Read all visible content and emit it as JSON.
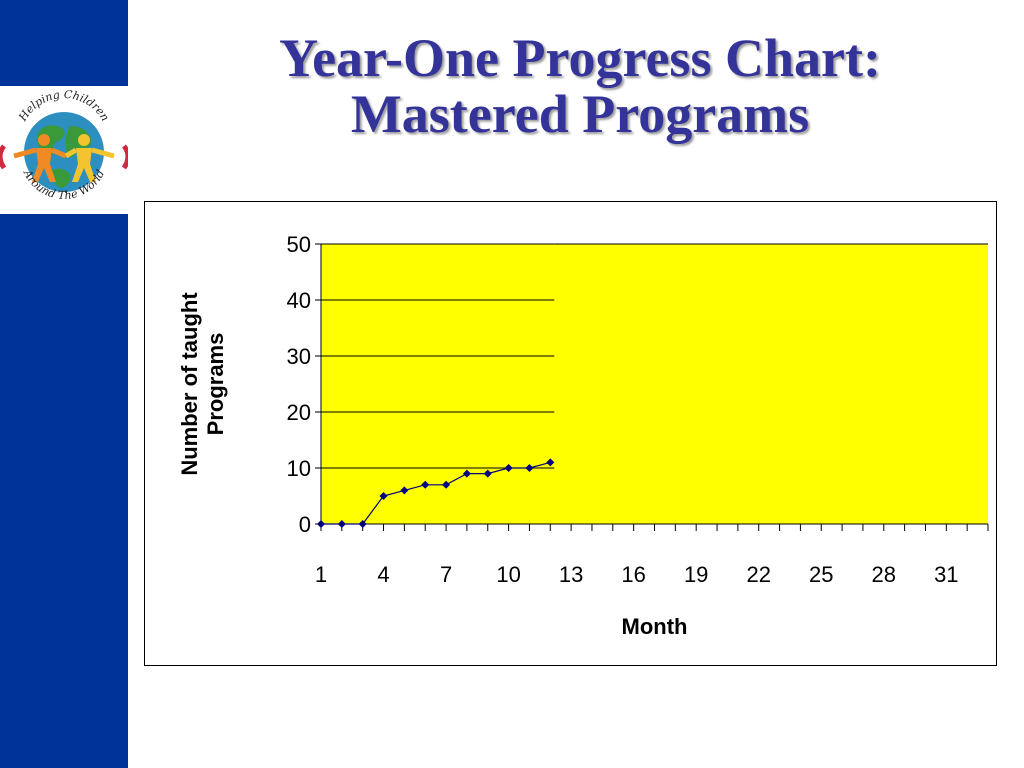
{
  "slide": {
    "title_line1": "Year-One Progress Chart:",
    "title_line2": "Mastered Programs"
  },
  "logo": {
    "top_text": "Helping Children",
    "bottom_text": "Around The World"
  },
  "colors": {
    "side_bar": "#003399",
    "title": "#333399",
    "plot_area": "#FFFF00",
    "series": "#000080"
  },
  "chart_data": {
    "type": "line",
    "xlabel": "Month",
    "ylabel_lines": [
      "Number of taught",
      "Programs"
    ],
    "ylim": [
      0,
      50
    ],
    "y_ticks": [
      0,
      10,
      20,
      30,
      40,
      50
    ],
    "xlim": [
      1,
      33
    ],
    "x_tick_labels": [
      1,
      4,
      7,
      10,
      13,
      16,
      19,
      22,
      25,
      28,
      31
    ],
    "grid": "horizontal",
    "legend": "none",
    "series": [
      {
        "x": [
          1,
          2,
          3,
          4,
          5,
          6,
          7,
          8,
          9,
          10,
          11,
          12
        ],
        "values": [
          0,
          0,
          0,
          5,
          6,
          7,
          7,
          9,
          9,
          10,
          10,
          11
        ]
      }
    ]
  }
}
